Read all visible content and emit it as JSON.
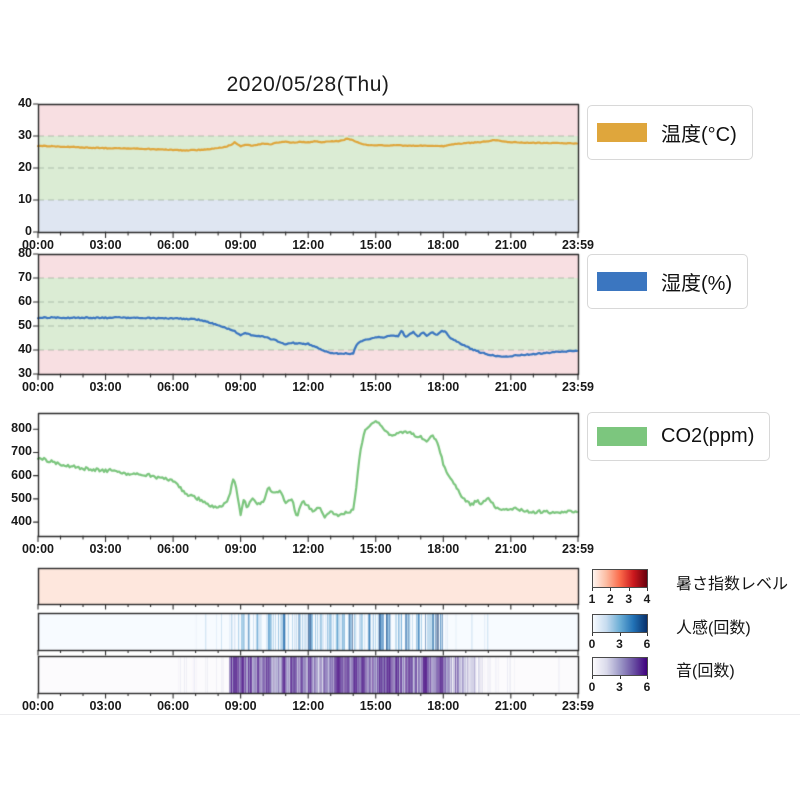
{
  "title": "2020/05/28(Thu)",
  "x_axis": {
    "tick_labels": [
      "00:00",
      "03:00",
      "06:00",
      "09:00",
      "12:00",
      "15:00",
      "18:00",
      "21:00",
      "23:59"
    ],
    "tick_hours": [
      0,
      3,
      6,
      9,
      12,
      15,
      18,
      21,
      23.983
    ],
    "minor_tick_step_hours": 1,
    "range_hours": [
      0,
      23.983
    ]
  },
  "chart_data": [
    {
      "type": "line",
      "id": "temperature",
      "legend": "温度(°C)",
      "color": "#dfa63c",
      "ylim": [
        0,
        40
      ],
      "yticks": [
        0,
        10,
        20,
        30,
        40
      ],
      "grid": [
        10,
        20,
        30
      ],
      "bands": [
        {
          "from": 0,
          "to": 10,
          "color": "#dfe6f2"
        },
        {
          "from": 10,
          "to": 30,
          "color": "#dbecd4"
        },
        {
          "from": 30,
          "to": 40,
          "color": "#f8dfe2"
        }
      ],
      "x_hours": [
        0,
        0.5,
        1,
        1.5,
        2,
        2.5,
        3,
        3.5,
        4,
        4.5,
        5,
        5.5,
        6,
        6.5,
        7,
        7.5,
        8,
        8.3,
        8.6,
        8.75,
        9,
        9.25,
        9.5,
        10,
        10.3,
        10.7,
        11,
        11.3,
        11.6,
        12,
        12.3,
        12.6,
        13,
        13.3,
        13.6,
        13.75,
        14,
        14.2,
        14.5,
        15,
        15.5,
        16,
        16.5,
        17,
        17.5,
        18,
        18.2,
        18.5,
        19,
        19.5,
        20,
        20.3,
        20.6,
        21,
        21.5,
        22,
        22.5,
        23,
        23.5,
        23.98
      ],
      "values": [
        27.0,
        26.8,
        26.7,
        26.6,
        26.4,
        26.3,
        26.2,
        26.1,
        26.1,
        26.0,
        25.9,
        25.8,
        25.6,
        25.5,
        25.6,
        25.8,
        26.2,
        26.5,
        27.3,
        28.1,
        26.8,
        27.2,
        27.0,
        27.6,
        27.4,
        28.0,
        28.2,
        27.9,
        28.1,
        28.0,
        28.3,
        28.1,
        28.4,
        28.4,
        28.8,
        29.2,
        28.6,
        28.0,
        27.3,
        27.1,
        27.0,
        27.1,
        26.9,
        27.0,
        26.9,
        26.8,
        27.2,
        27.4,
        27.8,
        28.0,
        28.4,
        28.8,
        28.4,
        28.1,
        27.9,
        27.9,
        27.8,
        27.8,
        27.7,
        27.6
      ]
    },
    {
      "type": "line",
      "id": "humidity",
      "legend": "湿度(%)",
      "color": "#3b76c0",
      "ylim": [
        30,
        80
      ],
      "yticks": [
        30,
        40,
        50,
        60,
        70,
        80
      ],
      "grid": [
        40,
        50,
        60,
        70
      ],
      "bands": [
        {
          "from": 30,
          "to": 40,
          "color": "#f8dfe2"
        },
        {
          "from": 40,
          "to": 70,
          "color": "#dbecd4"
        },
        {
          "from": 70,
          "to": 80,
          "color": "#f8dfe2"
        }
      ],
      "x_hours": [
        0,
        0.5,
        1,
        1.5,
        2,
        2.5,
        3,
        3.5,
        4,
        4.5,
        5,
        5.5,
        6,
        6.5,
        7,
        7.25,
        7.5,
        7.75,
        8,
        8.25,
        8.5,
        8.75,
        9,
        9.2,
        9.4,
        9.6,
        10,
        10.3,
        10.6,
        11,
        11.2,
        11.5,
        11.8,
        12,
        12.2,
        12.5,
        12.8,
        13,
        13.3,
        13.6,
        14,
        14.1,
        14.3,
        14.6,
        15,
        15.3,
        15.6,
        16,
        16.17,
        16.3,
        16.5,
        16.67,
        16.9,
        17.1,
        17.25,
        17.5,
        17.7,
        17.9,
        18.1,
        18.3,
        18.6,
        19,
        19.3,
        19.6,
        20,
        20.3,
        20.6,
        21,
        21.5,
        22,
        22.5,
        23,
        23.5,
        23.98
      ],
      "values": [
        53.5,
        53.5,
        53.5,
        53.4,
        53.5,
        53.4,
        53.4,
        53.5,
        53.4,
        53.3,
        53.3,
        53.2,
        53.1,
        53.0,
        52.8,
        52.4,
        51.8,
        51.0,
        50.2,
        49.4,
        48.6,
        47.8,
        46.2,
        46.9,
        46.4,
        46.0,
        45.6,
        44.8,
        43.8,
        42.2,
        43.0,
        42.8,
        42.4,
        42.6,
        41.6,
        40.6,
        39.4,
        38.9,
        38.6,
        38.5,
        38.4,
        41.5,
        43.5,
        44.4,
        45.4,
        45.0,
        46.0,
        45.6,
        48.4,
        45.2,
        46.4,
        47.4,
        45.6,
        47.6,
        45.8,
        47.5,
        46.0,
        47.7,
        47.9,
        45.0,
        43.4,
        41.6,
        40.2,
        39.2,
        38.1,
        37.6,
        37.3,
        37.5,
        37.9,
        38.3,
        38.7,
        39.1,
        39.4,
        39.6
      ]
    },
    {
      "type": "line",
      "id": "co2",
      "legend": "CO2(ppm)",
      "color": "#7cc67e",
      "ylim": [
        340,
        870
      ],
      "yticks": [
        400,
        500,
        600,
        700,
        800
      ],
      "grid": [],
      "bands": [],
      "x_hours": [
        0,
        0.5,
        1,
        1.5,
        2,
        2.5,
        3,
        3.2,
        3.5,
        4,
        4.5,
        5,
        5.3,
        5.6,
        6,
        6.3,
        6.6,
        7,
        7.25,
        7.5,
        7.75,
        8,
        8.25,
        8.5,
        8.65,
        8.8,
        9,
        9.15,
        9.3,
        9.5,
        9.75,
        10,
        10.25,
        10.5,
        10.75,
        11,
        11.25,
        11.5,
        11.75,
        12,
        12.25,
        12.5,
        12.75,
        13,
        13.25,
        13.5,
        13.75,
        14,
        14.15,
        14.3,
        14.5,
        14.75,
        15,
        15.25,
        15.5,
        15.75,
        16,
        16.25,
        16.5,
        16.75,
        17,
        17.25,
        17.5,
        17.75,
        18,
        18.25,
        18.5,
        18.75,
        19,
        19.25,
        19.5,
        19.75,
        20,
        20.25,
        20.5,
        21,
        21.5,
        22,
        22.5,
        23,
        23.5,
        23.98
      ],
      "values": [
        680,
        662,
        650,
        640,
        632,
        626,
        620,
        628,
        612,
        606,
        604,
        600,
        592,
        588,
        576,
        548,
        520,
        505,
        495,
        478,
        465,
        460,
        472,
        505,
        588,
        555,
        432,
        498,
        452,
        508,
        478,
        484,
        552,
        518,
        538,
        478,
        505,
        422,
        488,
        468,
        440,
        468,
        422,
        452,
        430,
        436,
        440,
        452,
        560,
        700,
        790,
        822,
        838,
        808,
        788,
        768,
        780,
        790,
        783,
        772,
        768,
        745,
        775,
        738,
        650,
        600,
        558,
        520,
        490,
        476,
        490,
        480,
        508,
        470,
        455,
        460,
        450,
        442,
        446,
        436,
        446,
        440
      ]
    },
    {
      "type": "heatmap",
      "id": "heat-index",
      "label": "暑さ指数レベル",
      "colormap": [
        "#fff5f0",
        "#fcbba1",
        "#fb6a4a",
        "#cb181d",
        "#67000d"
      ],
      "vmin": 1,
      "vmax": 4,
      "cbar_ticks": [
        "1",
        "2",
        "3",
        "4"
      ],
      "bin_minutes": 10,
      "bins": [
        1,
        1,
        1,
        1,
        1,
        1,
        1,
        1,
        1,
        1,
        1,
        1,
        1,
        1,
        1,
        1,
        1,
        1,
        1,
        1,
        1,
        1,
        1,
        1,
        1,
        1,
        1,
        1,
        1,
        1,
        1,
        1,
        1,
        1,
        1,
        1,
        1,
        1,
        1,
        1,
        1,
        1,
        1,
        1,
        1,
        1,
        1,
        1,
        1,
        1,
        1,
        1,
        1,
        1,
        1,
        1,
        1,
        1,
        1,
        1,
        1,
        1,
        1,
        1,
        1,
        1,
        1,
        1,
        1,
        1,
        1,
        1,
        1,
        1,
        1,
        1,
        1,
        1,
        1,
        1,
        1,
        1,
        1,
        1,
        1,
        1,
        1,
        1,
        1,
        1,
        1,
        1,
        1,
        1,
        1,
        1,
        1,
        1,
        1,
        1,
        1,
        1,
        1,
        1,
        1,
        1,
        1,
        1,
        1,
        1,
        1,
        1,
        1,
        1,
        1,
        1,
        1,
        1,
        1,
        1,
        1,
        1,
        1,
        1,
        1,
        1,
        1,
        1,
        1,
        1,
        1,
        1,
        1,
        1,
        1,
        1,
        1,
        1,
        1,
        1,
        1,
        1,
        1,
        1
      ]
    },
    {
      "type": "heatmap",
      "id": "presence",
      "label": "人感(回数)",
      "colormap": [
        "#f7fbff",
        "#c6dbef",
        "#6baed6",
        "#2171b5",
        "#08306b"
      ],
      "vmin": 0,
      "vmax": 6,
      "cbar_ticks": [
        "0",
        "3",
        "6"
      ],
      "bin_minutes": 10,
      "bins": [
        0,
        0,
        0,
        0,
        0,
        0,
        0,
        0,
        0,
        0,
        0,
        0,
        0,
        0,
        0,
        0,
        0,
        0,
        0,
        0,
        0,
        0,
        0,
        0,
        0,
        0,
        0,
        0,
        0,
        0,
        0,
        0,
        0,
        0,
        0,
        0,
        0,
        0,
        0,
        0,
        0,
        0,
        1,
        0,
        2,
        1,
        0,
        1,
        2,
        1,
        0,
        2,
        1,
        2,
        3,
        2,
        4,
        2,
        3,
        2,
        2,
        4,
        3,
        2,
        3,
        4,
        2,
        3,
        2,
        4,
        3,
        2,
        5,
        3,
        2,
        3,
        2,
        3,
        2,
        3,
        2,
        3,
        4,
        6,
        3,
        2,
        3,
        2,
        4,
        3,
        3,
        6,
        5,
        4,
        3,
        2,
        3,
        2,
        4,
        3,
        2,
        4,
        3,
        4,
        3,
        5,
        6,
        4,
        1,
        1,
        0,
        1,
        0,
        0,
        0,
        1,
        0,
        0,
        0,
        2,
        0,
        0,
        0,
        0,
        0,
        0,
        0,
        0,
        0,
        0,
        0,
        0,
        0,
        0,
        0,
        0,
        0,
        0,
        0,
        0,
        0,
        0,
        0,
        0
      ]
    },
    {
      "type": "heatmap",
      "id": "sound",
      "label": "音(回数)",
      "colormap": [
        "#fcfbfd",
        "#dadaeb",
        "#9e9ac8",
        "#6a51a3",
        "#3f007d"
      ],
      "vmin": 0,
      "vmax": 6,
      "cbar_ticks": [
        "0",
        "3",
        "6"
      ],
      "bin_minutes": 10,
      "bins": [
        0,
        0,
        0,
        0,
        0,
        0,
        0,
        0,
        0,
        0,
        0,
        0,
        0,
        0,
        0,
        0,
        0,
        0,
        0,
        0,
        0,
        0,
        0,
        0,
        0,
        0,
        0,
        0,
        0,
        0,
        0,
        0,
        0,
        0,
        0,
        0,
        0,
        1,
        0,
        1,
        0,
        1,
        1,
        0,
        1,
        1,
        0,
        1,
        1,
        1,
        0,
        5,
        6,
        5,
        6,
        5,
        6,
        4,
        5,
        4,
        5,
        6,
        4,
        3,
        4,
        5,
        4,
        5,
        6,
        4,
        5,
        4,
        5,
        4,
        3,
        4,
        5,
        4,
        4,
        5,
        6,
        5,
        6,
        5,
        6,
        5,
        6,
        5,
        4,
        5,
        5,
        6,
        5,
        6,
        5,
        6,
        5,
        4,
        5,
        6,
        5,
        4,
        5,
        6,
        5,
        4,
        5,
        6,
        5,
        4,
        3,
        4,
        3,
        3,
        3,
        2,
        3,
        2,
        2,
        1,
        1,
        0,
        1,
        0,
        0,
        1,
        0,
        1,
        0,
        0,
        0,
        0,
        0,
        0,
        0,
        0,
        0,
        0,
        1,
        0,
        0,
        0,
        0,
        0
      ]
    }
  ]
}
